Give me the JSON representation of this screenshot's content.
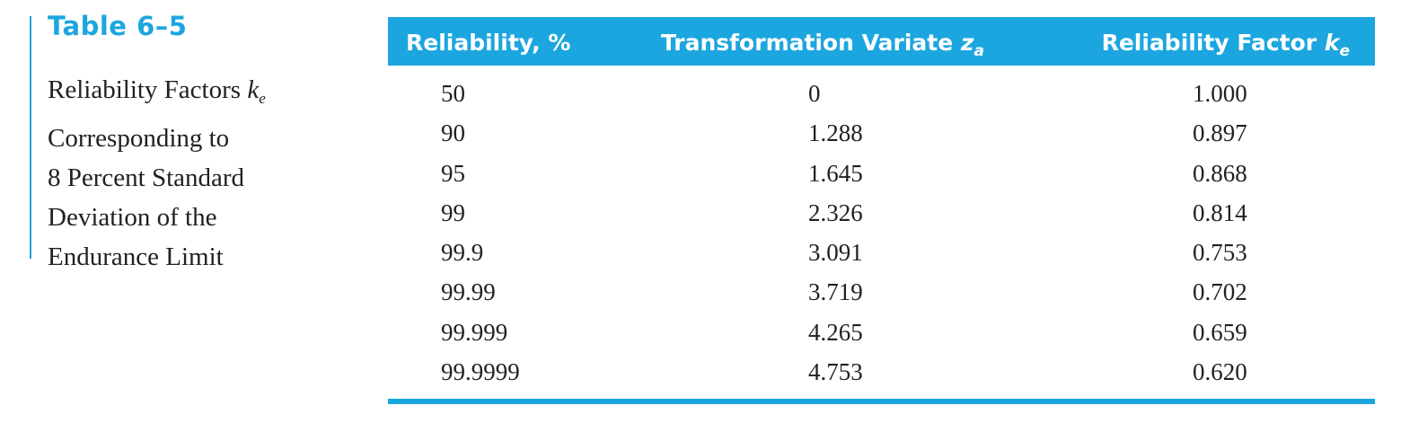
{
  "table": {
    "number": "Table 6–5",
    "caption": {
      "line1_text": "Reliability Factors ",
      "line1_symbol": "k",
      "line1_sub": "e",
      "line2": "Corresponding to",
      "line3": "8 Percent Standard",
      "line4": "Deviation of the",
      "line5": "Endurance Limit"
    },
    "headers": {
      "reliability": "Reliability, %",
      "variate_text": "Transformation Variate ",
      "variate_symbol": "z",
      "variate_sub": "a",
      "factor_text": "Reliability Factor ",
      "factor_symbol": "k",
      "factor_sub": "e"
    },
    "rows": [
      {
        "reliability": "50",
        "variate": "0",
        "factor": "1.000"
      },
      {
        "reliability": "90",
        "variate": "1.288",
        "factor": "0.897"
      },
      {
        "reliability": "95",
        "variate": "1.645",
        "factor": "0.868"
      },
      {
        "reliability": "99",
        "variate": "2.326",
        "factor": "0.814"
      },
      {
        "reliability": "99.9",
        "variate": "3.091",
        "factor": "0.753"
      },
      {
        "reliability": "99.99",
        "variate": "3.719",
        "factor": "0.702"
      },
      {
        "reliability": "99.999",
        "variate": "4.265",
        "factor": "0.659"
      },
      {
        "reliability": "99.9999",
        "variate": "4.753",
        "factor": "0.620"
      }
    ]
  },
  "colors": {
    "accent": "#1ca6df",
    "text": "#231f20",
    "header_text": "#ffffff"
  }
}
